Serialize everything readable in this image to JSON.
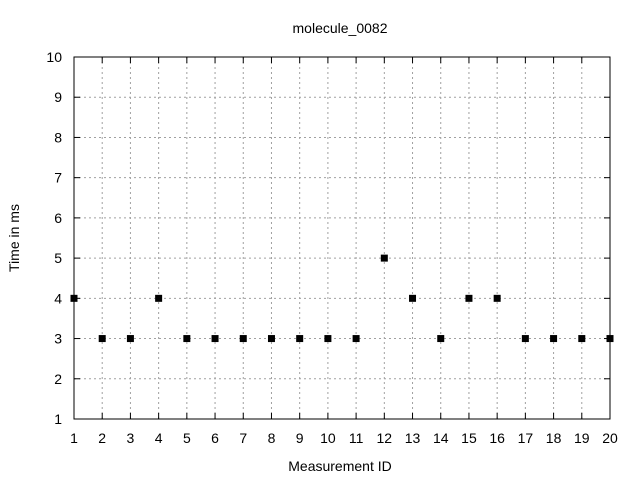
{
  "chart_data": {
    "type": "scatter",
    "title": "molecule_0082",
    "xlabel": "Measurement ID",
    "ylabel": "Time in ms",
    "xlim": [
      1,
      20
    ],
    "ylim": [
      1,
      10
    ],
    "grid": true,
    "x_ticks": [
      "1",
      "2",
      "3",
      "4",
      "5",
      "6",
      "7",
      "8",
      "9",
      "10",
      "11",
      "12",
      "13",
      "14",
      "15",
      "16",
      "17",
      "18",
      "19",
      "20"
    ],
    "y_ticks": [
      "1",
      "2",
      "3",
      "4",
      "5",
      "6",
      "7",
      "8",
      "9",
      "10"
    ],
    "marker": "square",
    "marker_color": "#000000",
    "series": [
      {
        "name": "molecule_0082",
        "x": [
          1,
          2,
          3,
          4,
          5,
          6,
          7,
          8,
          9,
          10,
          11,
          12,
          13,
          14,
          15,
          16,
          17,
          18,
          19,
          20
        ],
        "y": [
          4,
          3,
          3,
          4,
          3,
          3,
          3,
          3,
          3,
          3,
          3,
          5,
          4,
          3,
          4,
          4,
          3,
          3,
          3,
          3
        ]
      }
    ]
  }
}
